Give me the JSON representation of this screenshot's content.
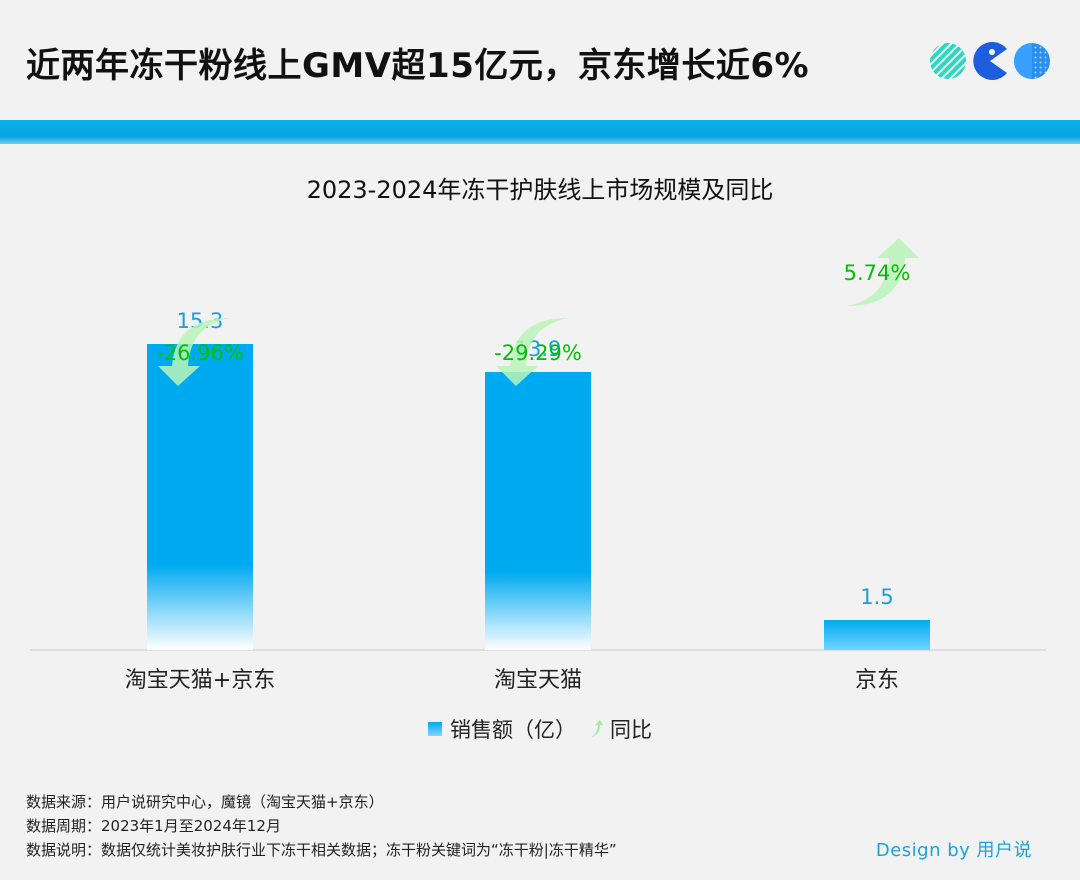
{
  "header": {
    "headline": "近两年冻干粉线上GMV超15亿元，京东增长近6%"
  },
  "chart_data": {
    "type": "bar",
    "title": "2023-2024年冻干护肤线上市场规模及同比",
    "categories": [
      "淘宝天猫+京东",
      "淘宝天猫",
      "京东"
    ],
    "series": [
      {
        "name": "销售额（亿）",
        "values": [
          15.3,
          13.9,
          1.5
        ]
      },
      {
        "name": "同比",
        "values": [
          "-26.96%",
          "-29.29%",
          "5.74%"
        ],
        "direction": [
          "down",
          "down",
          "up"
        ]
      }
    ],
    "ylim": [
      0,
      22
    ],
    "grid": false,
    "legend_position": "bottom",
    "colors": {
      "bar": "#00aaf0",
      "bar_fade": "#ffffff",
      "growth": "#00c000",
      "growth_arrow": "#b8f5b8",
      "label": "#1a9fdc"
    }
  },
  "footer": {
    "source": "数据来源：用户说研究中心，魔镜（淘宝天猫+京东）",
    "period": "数据周期：2023年1月至2024年12月",
    "note": "数据说明：数据仅统计美妆护肤行业下冻干相关数据；冻干粉关键词为“冻干粉|冻干精华”",
    "credit": "Design by 用户说"
  }
}
